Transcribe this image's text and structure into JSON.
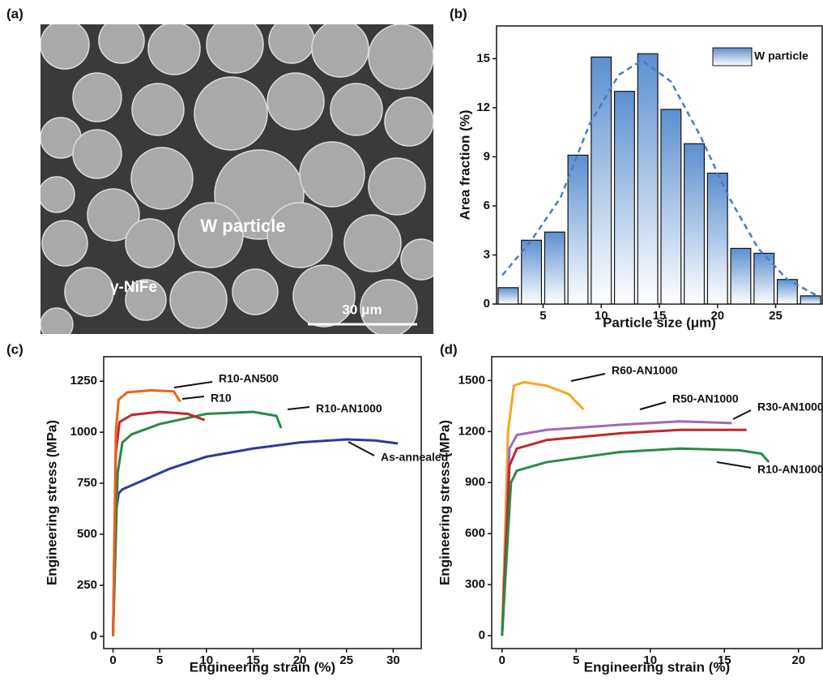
{
  "micrograph": {
    "panel_label": "(a)",
    "labels": [
      "W particle",
      "γ-NiFe"
    ],
    "scale_bar": "30 μm"
  },
  "chart_data": [
    {
      "type": "histogram",
      "panel_label": "(b)",
      "x_label": "Particle size (μm)",
      "y_label": "Area fraction (%)",
      "bins": [
        1,
        3,
        5,
        7,
        9,
        11,
        13,
        15,
        17,
        19,
        21,
        23,
        25,
        27,
        29
      ],
      "series": [
        {
          "name": "W particle",
          "color": "#5b8fd0",
          "values": [
            1.0,
            3.9,
            4.4,
            9.1,
            15.1,
            13.0,
            15.3,
            11.9,
            9.8,
            8.0,
            3.4,
            3.1,
            1.5,
            0.5
          ]
        }
      ],
      "fit": {
        "color": "#4a7cc4",
        "x": [
          1.5,
          4,
          6.5,
          9,
          11.5,
          13.5,
          16,
          18.5,
          21,
          23.5,
          26,
          28.5
        ],
        "values": [
          1.76,
          3.9,
          6.5,
          11.0,
          14.0,
          14.9,
          13.6,
          10.3,
          6.5,
          3.4,
          1.5,
          0.53
        ]
      },
      "xlim": [
        1,
        29
      ],
      "ylim": [
        0,
        17
      ],
      "xticks": [
        5,
        10,
        15,
        20,
        25
      ],
      "yticks": [
        0,
        3,
        6,
        9,
        12,
        15
      ],
      "legend": "upper right"
    },
    {
      "type": "line",
      "panel_label": "(c)",
      "x_label": "Engineering strain (%)",
      "y_label": "Engineering stress (MPa)",
      "xlim": [
        -1,
        33
      ],
      "ylim": [
        -60,
        1370
      ],
      "xticks": [
        0,
        5,
        10,
        15,
        20,
        25,
        30
      ],
      "yticks": [
        0,
        250,
        500,
        750,
        1000,
        1250
      ],
      "series": [
        {
          "name": "As-annealed",
          "color": "#2e3a9f",
          "x": [
            0,
            0.3,
            0.6,
            1,
            3,
            6,
            10,
            15,
            20,
            25,
            28,
            30.5
          ],
          "values": [
            0,
            600,
            700,
            720,
            760,
            820,
            880,
            920,
            950,
            965,
            960,
            945
          ]
        },
        {
          "name": "R10-AN1000",
          "color": "#2a8a47",
          "x": [
            0,
            0.5,
            1,
            2,
            5,
            10,
            15,
            17.5,
            18
          ],
          "values": [
            0,
            800,
            950,
            990,
            1040,
            1090,
            1100,
            1080,
            1020
          ]
        },
        {
          "name": "R10",
          "color": "#c0282a",
          "x": [
            0,
            0.3,
            0.7,
            2,
            5,
            8,
            9.8
          ],
          "values": [
            0,
            900,
            1050,
            1085,
            1100,
            1090,
            1060
          ]
        },
        {
          "name": "R10-AN500",
          "color": "#e8641c",
          "x": [
            0,
            0.3,
            0.6,
            1.5,
            4,
            6.5,
            7.2
          ],
          "values": [
            0,
            1000,
            1160,
            1195,
            1205,
            1200,
            1150
          ]
        }
      ]
    },
    {
      "type": "line",
      "panel_label": "(d)",
      "x_label": "Engineering strain (%)",
      "y_label": "Engineering stress (MPa)",
      "xlim": [
        -0.7,
        21.6
      ],
      "ylim": [
        -76,
        1640
      ],
      "xticks": [
        0,
        5,
        10,
        15,
        20
      ],
      "yticks": [
        0,
        300,
        600,
        900,
        1200,
        1500
      ],
      "series": [
        {
          "name": "R60-AN1000",
          "color": "#f5a623",
          "x": [
            0,
            0.4,
            0.8,
            1.5,
            3,
            4.5,
            5.5
          ],
          "values": [
            0,
            1200,
            1470,
            1490,
            1470,
            1420,
            1330
          ]
        },
        {
          "name": "R50-AN1000",
          "color": "#9b6bbf",
          "x": [
            0,
            0.5,
            1,
            3,
            8,
            12,
            15.5
          ],
          "values": [
            0,
            1100,
            1180,
            1210,
            1240,
            1260,
            1250
          ]
        },
        {
          "name": "R30-AN1000",
          "color": "#c0282a",
          "x": [
            0,
            0.5,
            1,
            3,
            8,
            12,
            16.5
          ],
          "values": [
            0,
            1000,
            1100,
            1150,
            1190,
            1210,
            1210
          ]
        },
        {
          "name": "R10-AN1000",
          "color": "#2a8a47",
          "x": [
            0,
            0.6,
            1,
            3,
            8,
            12,
            16,
            17.5,
            18
          ],
          "values": [
            0,
            900,
            970,
            1020,
            1080,
            1100,
            1090,
            1070,
            1020
          ]
        }
      ]
    }
  ]
}
